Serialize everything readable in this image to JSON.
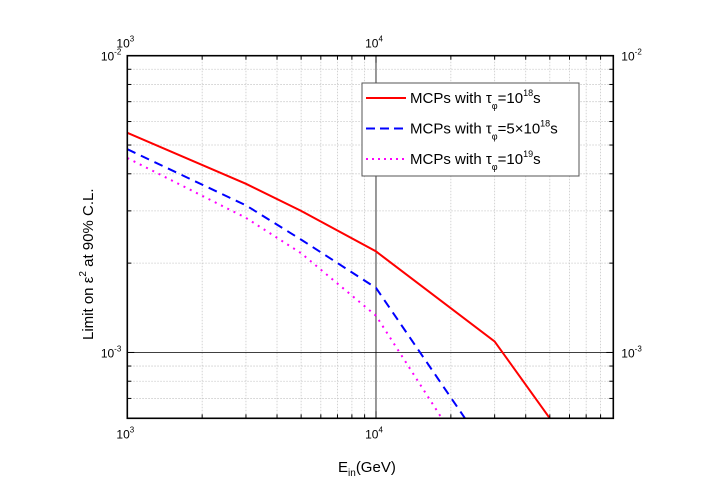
{
  "chart_data": {
    "type": "line",
    "xlabel": {
      "main": "E",
      "sub": "in",
      "rest": "(GeV)"
    },
    "ylabel": {
      "main": "Limit on ε",
      "sup": "2",
      "rest": " at 90% C.L."
    },
    "x_scale": "log",
    "y_scale": "log",
    "xlim": [
      1000,
      90000
    ],
    "ylim": [
      0.0006,
      0.01
    ],
    "grid": true,
    "legend_position": "top-right",
    "x_ticks": [
      {
        "value": 1000,
        "base": "10",
        "exp": "3"
      },
      {
        "value": 10000,
        "base": "10",
        "exp": "4"
      }
    ],
    "y_ticks": [
      {
        "value": 0.01,
        "base": "10",
        "exp": "-2"
      },
      {
        "value": 0.001,
        "base": "10",
        "exp": "-3"
      }
    ],
    "series": [
      {
        "name": "MCPs with τφ=10^18 s",
        "legend": {
          "pre": "MCPs with τ",
          "sub": "φ",
          "mid": "=10",
          "sup": "18",
          "post": "s"
        },
        "color": "#ff0000",
        "style": "solid",
        "x": [
          1000,
          3000,
          5000,
          10000,
          30000,
          50000
        ],
        "y": [
          0.0055,
          0.0037,
          0.003,
          0.00219,
          0.00109,
          0.0006
        ]
      },
      {
        "name": "MCPs with τφ=5×10^18 s",
        "legend": {
          "pre": "MCPs with τ",
          "sub": "φ",
          "mid": "=5×10",
          "sup": "18",
          "post": "s"
        },
        "color": "#0000ff",
        "style": "dashed",
        "x": [
          1000,
          3000,
          5000,
          10000,
          22800
        ],
        "y": [
          0.00484,
          0.00313,
          0.0024,
          0.00165,
          0.0006
        ]
      },
      {
        "name": "MCPs with τφ=10^19 s",
        "legend": {
          "pre": "MCPs with τ",
          "sub": "φ",
          "mid": "=10",
          "sup": "19",
          "post": "s"
        },
        "color": "#ff00ff",
        "style": "dotted",
        "x": [
          1000,
          3000,
          5000,
          10000,
          18400
        ],
        "y": [
          0.00452,
          0.00284,
          0.00216,
          0.00133,
          0.0006
        ]
      }
    ]
  }
}
